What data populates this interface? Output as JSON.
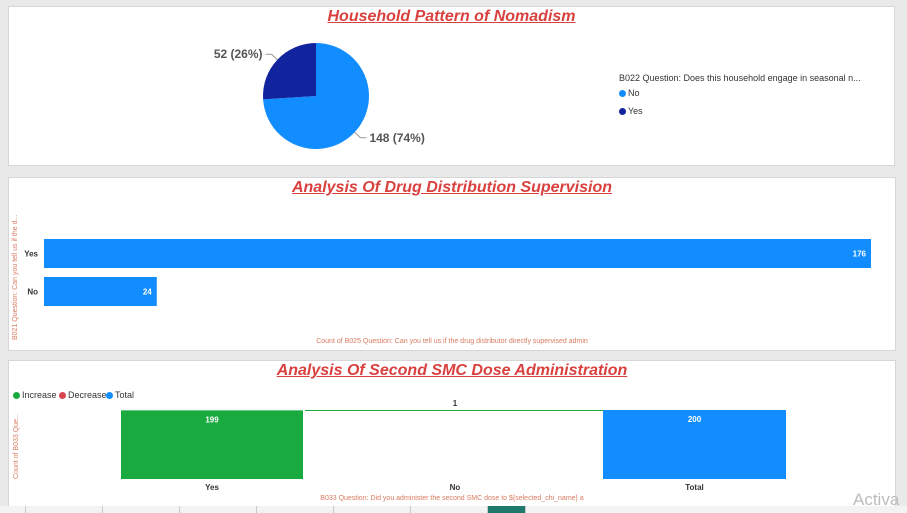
{
  "panels": {
    "nomadism": {
      "title": "Household Pattern of Nomadism",
      "legend_title": "B022 Question: Does this household engage in seasonal n...",
      "legend_items": [
        {
          "label": "No",
          "color": "#118dff"
        },
        {
          "label": "Yes",
          "color": "#12239e"
        }
      ]
    },
    "supervision": {
      "title": "Analysis Of Drug Distribution Supervision",
      "ylabel": "B021 Question: Can you tell us if the d...",
      "xlabel": "Count of B025 Question: Can you tell us if the drug distributor directly supervised admin"
    },
    "smc": {
      "title": "Analysis Of Second SMC Dose Administration",
      "legend_items": [
        {
          "label": "Increase",
          "color": "#1aab40"
        },
        {
          "label": "Decrease",
          "color": "#d64550"
        },
        {
          "label": "Total",
          "color": "#118dff"
        }
      ],
      "ylabel": "Count of B033 Que...",
      "xlabel": "B033 Question: Did you administer the second SMC dose to ${selected_chi_name} a"
    }
  },
  "chart_data": [
    {
      "type": "pie",
      "title": "Household Pattern of Nomadism",
      "categories": [
        "No",
        "Yes"
      ],
      "values": [
        148,
        52
      ],
      "labels": [
        "148 (74%)",
        "52 (26%)"
      ],
      "colors": [
        "#118dff",
        "#12239e"
      ],
      "legend": "right"
    },
    {
      "type": "bar",
      "orientation": "horizontal",
      "title": "Analysis Of Drug Distribution Supervision",
      "categories": [
        "Yes",
        "No"
      ],
      "values": [
        176,
        24
      ],
      "color": "#118dff",
      "xlim": [
        0,
        176
      ]
    },
    {
      "type": "bar",
      "subtype": "waterfall",
      "title": "Analysis Of Second SMC Dose Administration",
      "categories": [
        "Yes",
        "No",
        "Total"
      ],
      "values": [
        199,
        1,
        200
      ],
      "kinds": [
        "increase",
        "increase",
        "total"
      ],
      "colors": {
        "increase": "#1aab40",
        "decrease": "#d64550",
        "total": "#118dff"
      },
      "ylim": [
        0,
        200
      ]
    }
  ],
  "watermark": "Activa"
}
